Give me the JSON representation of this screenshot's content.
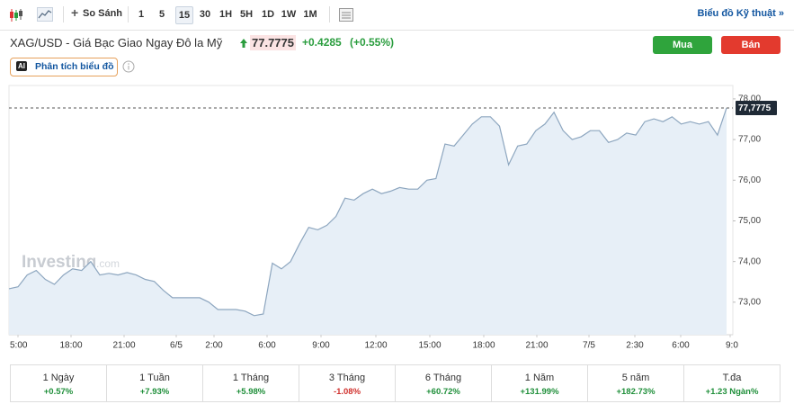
{
  "toolbar": {
    "compare": "So Sánh",
    "intervals": [
      "1",
      "5",
      "15",
      "30",
      "1H",
      "5H",
      "1D",
      "1W",
      "1M"
    ],
    "active_interval": "15",
    "technical_link": "Biểu đồ Kỹ thuật »"
  },
  "header": {
    "title": "XAG/USD - Giá Bạc Giao Ngay Đô la Mỹ",
    "price": "77.7775",
    "change": "+0.4285",
    "change_pct": "(+0.55%)",
    "buy": "Mua",
    "sell": "Bán",
    "ai_badge": "AI",
    "analysis": "Phân tích biểu đồ"
  },
  "chart_data": {
    "type": "area",
    "watermark": "Investing",
    "watermark_suffix": ".com",
    "color": "#8da6bf",
    "fill_color": "#e7eff7",
    "x_labels": [
      "5:00",
      "18:00",
      "21:00",
      "6/5",
      "2:00",
      "6:00",
      "9:00",
      "12:00",
      "15:00",
      "18:00",
      "21:00",
      "7/5",
      "2:30",
      "6:00",
      "9:0"
    ],
    "values": [
      73.33,
      73.38,
      73.67,
      73.78,
      73.56,
      73.44,
      73.67,
      73.82,
      73.78,
      74.0,
      73.67,
      73.71,
      73.67,
      73.73,
      73.67,
      73.56,
      73.51,
      73.29,
      73.11,
      73.11,
      73.11,
      73.11,
      73.0,
      72.82,
      72.82,
      72.82,
      72.78,
      72.67,
      72.71,
      73.96,
      73.82,
      74.0,
      74.44,
      74.84,
      74.78,
      74.89,
      75.11,
      75.56,
      75.51,
      75.67,
      75.78,
      75.67,
      75.73,
      75.82,
      75.78,
      75.78,
      76.0,
      76.04,
      76.89,
      76.84,
      77.11,
      77.38,
      77.56,
      77.56,
      77.33,
      76.38,
      76.84,
      76.89,
      77.22,
      77.38,
      77.67,
      77.22,
      77.0,
      77.07,
      77.22,
      77.22,
      76.93,
      77.0,
      77.16,
      77.11,
      77.44,
      77.51,
      77.44,
      77.56,
      77.38,
      77.44,
      77.38,
      77.44,
      77.11,
      77.78
    ],
    "ylim": [
      72.2,
      78.33
    ],
    "yticks": [
      {
        "value": 73,
        "label": "73,00"
      },
      {
        "value": 74,
        "label": "74,00"
      },
      {
        "value": 75,
        "label": "75,00"
      },
      {
        "value": 76,
        "label": "76,00"
      },
      {
        "value": 77,
        "label": "77,00"
      },
      {
        "value": 78,
        "label": "78,00"
      }
    ],
    "last_price": {
      "value": 77.7775,
      "label": "77,7775"
    }
  },
  "performance": [
    {
      "period": "1 Ngày",
      "change": "+0.57%"
    },
    {
      "period": "1 Tuần",
      "change": "+7.93%"
    },
    {
      "period": "1 Tháng",
      "change": "+5.98%"
    },
    {
      "period": "3 Tháng",
      "change": "-1.08%"
    },
    {
      "period": "6 Tháng",
      "change": "+60.72%"
    },
    {
      "period": "1 Năm",
      "change": "+131.99%"
    },
    {
      "period": "5 năm",
      "change": "+182.73%"
    },
    {
      "period": "T.đa",
      "change": "+1.23 Ngàn%"
    }
  ]
}
